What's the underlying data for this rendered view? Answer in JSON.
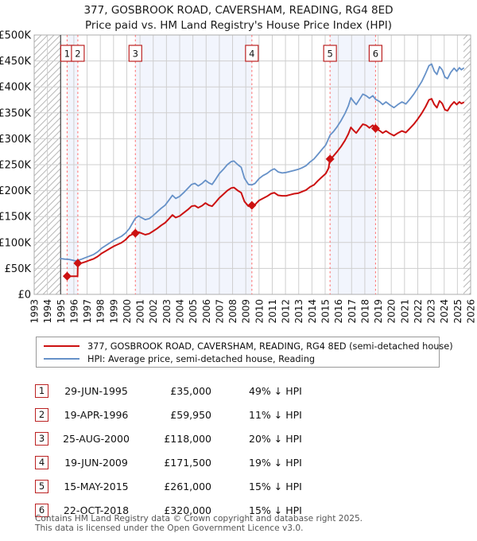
{
  "title": {
    "line1": "377, GOSBROOK ROAD, CAVERSHAM, READING, RG4 8ED",
    "line2": "Price paid vs. HM Land Registry's House Price Index (HPI)"
  },
  "legend": {
    "items": [
      {
        "label": "377, GOSBROOK ROAD, CAVERSHAM, READING, RG4 8ED (semi-detached house)",
        "color": "#cc1111"
      },
      {
        "label": "HPI: Average price, semi-detached house, Reading",
        "color": "#6691c8"
      }
    ]
  },
  "chart_data": {
    "type": "line",
    "title": "377, GOSBROOK ROAD, CAVERSHAM, READING, RG4 8ED — Price paid vs. HM Land Registry's House Price Index (HPI)",
    "x_range": [
      1993,
      2026
    ],
    "y_range": [
      0,
      500000
    ],
    "x_ticks": [
      1993,
      1994,
      1995,
      1996,
      1997,
      1998,
      1999,
      2000,
      2001,
      2002,
      2003,
      2004,
      2005,
      2006,
      2007,
      2008,
      2009,
      2010,
      2011,
      2012,
      2013,
      2014,
      2015,
      2016,
      2017,
      2018,
      2019,
      2020,
      2021,
      2022,
      2023,
      2024,
      2025,
      2026
    ],
    "y_tick_values": [
      0,
      50000,
      100000,
      150000,
      200000,
      250000,
      300000,
      350000,
      400000,
      450000,
      500000
    ],
    "y_tick_labels": [
      "£0",
      "£50K",
      "£100K",
      "£150K",
      "£200K",
      "£250K",
      "£300K",
      "£350K",
      "£400K",
      "£450K",
      "£500K"
    ],
    "grid": true,
    "colors": {
      "price": "#cc1111",
      "hpi": "#6691c8",
      "band": "#f2f5fd",
      "grid": "#cfcfcf",
      "border": "#adadad",
      "sale_line": "#ff6a6a",
      "hatch": "#b8b8b8",
      "data_start_line": "#444444",
      "marker_box_border": "#bb2222"
    },
    "hatched_periods": [
      [
        1993,
        1995.0
      ],
      [
        2025.46,
        2026
      ]
    ],
    "shaded_periods": [
      [
        1995.49,
        1996.3
      ],
      [
        2000.65,
        2009.46
      ],
      [
        2015.37,
        2018.81
      ]
    ],
    "sales": [
      {
        "n": 1,
        "date": "29-JUN-1995",
        "date_decimal": 1995.49,
        "price": 35000,
        "price_label": "£35,000",
        "pct_label": "49% ↓ HPI"
      },
      {
        "n": 2,
        "date": "19-APR-1996",
        "date_decimal": 1996.3,
        "price": 59950,
        "price_label": "£59,950",
        "pct_label": "11% ↓ HPI"
      },
      {
        "n": 3,
        "date": "25-AUG-2000",
        "date_decimal": 2000.65,
        "price": 118000,
        "price_label": "£118,000",
        "pct_label": "20% ↓ HPI"
      },
      {
        "n": 4,
        "date": "19-JUN-2009",
        "date_decimal": 2009.46,
        "price": 171500,
        "price_label": "£171,500",
        "pct_label": "19% ↓ HPI"
      },
      {
        "n": 5,
        "date": "15-MAY-2015",
        "date_decimal": 2015.37,
        "price": 261000,
        "price_label": "£261,000",
        "pct_label": "15% ↓ HPI"
      },
      {
        "n": 6,
        "date": "22-OCT-2018",
        "date_decimal": 2018.81,
        "price": 320000,
        "price_label": "£320,000",
        "pct_label": "15% ↓ HPI"
      }
    ],
    "series": [
      {
        "name": "377, GOSBROOK ROAD, CAVERSHAM, READING, RG4 8ED (semi-detached house)",
        "color": "#cc1111",
        "width": 2,
        "points": [
          [
            1995.49,
            35000
          ],
          [
            1996.28,
            35000
          ],
          [
            1996.3,
            59950
          ],
          [
            1996.6,
            60500
          ],
          [
            1996.9,
            63000
          ],
          [
            1997.2,
            66000
          ],
          [
            1997.5,
            68500
          ],
          [
            1997.8,
            73000
          ],
          [
            1998.1,
            79000
          ],
          [
            1998.4,
            83500
          ],
          [
            1998.7,
            88000
          ],
          [
            1999.0,
            92500
          ],
          [
            1999.3,
            96000
          ],
          [
            1999.6,
            99500
          ],
          [
            1999.9,
            105000
          ],
          [
            2000.2,
            113000
          ],
          [
            2000.45,
            116000
          ],
          [
            2000.65,
            118000
          ],
          [
            2000.9,
            120000
          ],
          [
            2001.1,
            118000
          ],
          [
            2001.4,
            115000
          ],
          [
            2001.7,
            117000
          ],
          [
            2002.0,
            122000
          ],
          [
            2002.3,
            127000
          ],
          [
            2002.6,
            133000
          ],
          [
            2002.9,
            138000
          ],
          [
            2003.2,
            146000
          ],
          [
            2003.45,
            153000
          ],
          [
            2003.7,
            148000
          ],
          [
            2004.0,
            151000
          ],
          [
            2004.3,
            157000
          ],
          [
            2004.6,
            163000
          ],
          [
            2004.9,
            170000
          ],
          [
            2005.15,
            171000
          ],
          [
            2005.4,
            167000
          ],
          [
            2005.7,
            171000
          ],
          [
            2005.95,
            176000
          ],
          [
            2006.2,
            172000
          ],
          [
            2006.45,
            170000
          ],
          [
            2006.7,
            177000
          ],
          [
            2007.0,
            186000
          ],
          [
            2007.3,
            193000
          ],
          [
            2007.6,
            200000
          ],
          [
            2007.9,
            205000
          ],
          [
            2008.1,
            206000
          ],
          [
            2008.4,
            200000
          ],
          [
            2008.65,
            196000
          ],
          [
            2008.9,
            179000
          ],
          [
            2009.2,
            170000
          ],
          [
            2009.46,
            171500
          ],
          [
            2009.7,
            173000
          ],
          [
            2010.0,
            181000
          ],
          [
            2010.3,
            185000
          ],
          [
            2010.6,
            189000
          ],
          [
            2010.9,
            194000
          ],
          [
            2011.15,
            196000
          ],
          [
            2011.45,
            191000
          ],
          [
            2011.75,
            190000
          ],
          [
            2012.05,
            190000
          ],
          [
            2012.35,
            192000
          ],
          [
            2012.65,
            194000
          ],
          [
            2012.95,
            195000
          ],
          [
            2013.25,
            198000
          ],
          [
            2013.55,
            201000
          ],
          [
            2013.85,
            207000
          ],
          [
            2014.15,
            211000
          ],
          [
            2014.45,
            219000
          ],
          [
            2014.75,
            226000
          ],
          [
            2015.05,
            233000
          ],
          [
            2015.25,
            243000
          ],
          [
            2015.37,
            261000
          ],
          [
            2015.6,
            266000
          ],
          [
            2015.9,
            275000
          ],
          [
            2016.2,
            285000
          ],
          [
            2016.5,
            297000
          ],
          [
            2016.75,
            309000
          ],
          [
            2016.95,
            322000
          ],
          [
            2017.15,
            316000
          ],
          [
            2017.35,
            311000
          ],
          [
            2017.6,
            320000
          ],
          [
            2017.85,
            328000
          ],
          [
            2018.1,
            326000
          ],
          [
            2018.35,
            321000
          ],
          [
            2018.6,
            326000
          ],
          [
            2018.81,
            320000
          ],
          [
            2019.1,
            316000
          ],
          [
            2019.35,
            311000
          ],
          [
            2019.6,
            315000
          ],
          [
            2019.9,
            310000
          ],
          [
            2020.2,
            306000
          ],
          [
            2020.5,
            311000
          ],
          [
            2020.8,
            315000
          ],
          [
            2021.1,
            312000
          ],
          [
            2021.4,
            320000
          ],
          [
            2021.7,
            328000
          ],
          [
            2022.0,
            338000
          ],
          [
            2022.3,
            349000
          ],
          [
            2022.6,
            362000
          ],
          [
            2022.85,
            375000
          ],
          [
            2023.05,
            377000
          ],
          [
            2023.25,
            366000
          ],
          [
            2023.45,
            360000
          ],
          [
            2023.65,
            373000
          ],
          [
            2023.85,
            368000
          ],
          [
            2024.05,
            356000
          ],
          [
            2024.25,
            354000
          ],
          [
            2024.5,
            364000
          ],
          [
            2024.75,
            371000
          ],
          [
            2024.95,
            366000
          ],
          [
            2025.15,
            371000
          ],
          [
            2025.3,
            368000
          ],
          [
            2025.46,
            370000
          ]
        ]
      },
      {
        "name": "HPI: Average price, semi-detached house, Reading",
        "color": "#6691c8",
        "width": 1.8,
        "points": [
          [
            1995.0,
            69000
          ],
          [
            1995.3,
            68000
          ],
          [
            1995.6,
            67500
          ],
          [
            1995.9,
            66000
          ],
          [
            1996.1,
            64500
          ],
          [
            1996.35,
            66000
          ],
          [
            1996.6,
            68000
          ],
          [
            1996.9,
            71000
          ],
          [
            1997.2,
            74000
          ],
          [
            1997.5,
            77000
          ],
          [
            1997.8,
            82000
          ],
          [
            1998.1,
            89000
          ],
          [
            1998.4,
            94000
          ],
          [
            1998.7,
            99000
          ],
          [
            1999.0,
            104000
          ],
          [
            1999.3,
            108000
          ],
          [
            1999.6,
            112000
          ],
          [
            1999.9,
            118000
          ],
          [
            2000.2,
            127000
          ],
          [
            2000.45,
            138000
          ],
          [
            2000.65,
            147000
          ],
          [
            2000.9,
            151000
          ],
          [
            2001.1,
            148000
          ],
          [
            2001.4,
            144000
          ],
          [
            2001.7,
            146000
          ],
          [
            2002.0,
            152000
          ],
          [
            2002.3,
            159000
          ],
          [
            2002.6,
            166000
          ],
          [
            2002.9,
            172000
          ],
          [
            2003.2,
            182000
          ],
          [
            2003.45,
            191000
          ],
          [
            2003.7,
            185000
          ],
          [
            2004.0,
            189000
          ],
          [
            2004.3,
            196000
          ],
          [
            2004.6,
            204000
          ],
          [
            2004.9,
            212000
          ],
          [
            2005.15,
            214000
          ],
          [
            2005.4,
            209000
          ],
          [
            2005.7,
            214000
          ],
          [
            2005.95,
            220000
          ],
          [
            2006.2,
            215000
          ],
          [
            2006.45,
            212000
          ],
          [
            2006.7,
            221000
          ],
          [
            2007.0,
            233000
          ],
          [
            2007.3,
            241000
          ],
          [
            2007.6,
            250000
          ],
          [
            2007.9,
            256000
          ],
          [
            2008.1,
            257000
          ],
          [
            2008.4,
            250000
          ],
          [
            2008.65,
            245000
          ],
          [
            2008.9,
            224000
          ],
          [
            2009.2,
            212000
          ],
          [
            2009.46,
            211000
          ],
          [
            2009.7,
            214000
          ],
          [
            2010.0,
            223000
          ],
          [
            2010.3,
            229000
          ],
          [
            2010.6,
            233000
          ],
          [
            2010.9,
            239000
          ],
          [
            2011.15,
            242000
          ],
          [
            2011.45,
            236000
          ],
          [
            2011.75,
            234000
          ],
          [
            2012.05,
            235000
          ],
          [
            2012.35,
            237000
          ],
          [
            2012.65,
            239000
          ],
          [
            2012.95,
            241000
          ],
          [
            2013.25,
            244000
          ],
          [
            2013.55,
            248000
          ],
          [
            2013.85,
            255000
          ],
          [
            2014.15,
            261000
          ],
          [
            2014.45,
            270000
          ],
          [
            2014.75,
            279000
          ],
          [
            2015.05,
            288000
          ],
          [
            2015.37,
            307000
          ],
          [
            2015.6,
            313000
          ],
          [
            2015.9,
            323000
          ],
          [
            2016.2,
            335000
          ],
          [
            2016.5,
            349000
          ],
          [
            2016.75,
            363000
          ],
          [
            2016.95,
            379000
          ],
          [
            2017.15,
            372000
          ],
          [
            2017.35,
            366000
          ],
          [
            2017.6,
            376000
          ],
          [
            2017.85,
            386000
          ],
          [
            2018.1,
            383000
          ],
          [
            2018.35,
            378000
          ],
          [
            2018.6,
            383000
          ],
          [
            2018.81,
            376000
          ],
          [
            2019.1,
            372000
          ],
          [
            2019.35,
            366000
          ],
          [
            2019.6,
            371000
          ],
          [
            2019.9,
            365000
          ],
          [
            2020.2,
            360000
          ],
          [
            2020.5,
            366000
          ],
          [
            2020.8,
            371000
          ],
          [
            2021.1,
            367000
          ],
          [
            2021.4,
            376000
          ],
          [
            2021.7,
            386000
          ],
          [
            2022.0,
            398000
          ],
          [
            2022.3,
            410000
          ],
          [
            2022.6,
            426000
          ],
          [
            2022.85,
            441000
          ],
          [
            2023.05,
            444000
          ],
          [
            2023.25,
            430000
          ],
          [
            2023.45,
            424000
          ],
          [
            2023.65,
            439000
          ],
          [
            2023.85,
            433000
          ],
          [
            2024.05,
            419000
          ],
          [
            2024.25,
            416000
          ],
          [
            2024.5,
            428000
          ],
          [
            2024.75,
            436000
          ],
          [
            2024.95,
            430000
          ],
          [
            2025.15,
            437000
          ],
          [
            2025.3,
            433000
          ],
          [
            2025.46,
            436000
          ]
        ]
      }
    ]
  },
  "table": {
    "rows": [
      {
        "num": "1",
        "date": "29-JUN-1995",
        "price": "£35,000",
        "pct": "49% ↓ HPI"
      },
      {
        "num": "2",
        "date": "19-APR-1996",
        "price": "£59,950",
        "pct": "11% ↓ HPI"
      },
      {
        "num": "3",
        "date": "25-AUG-2000",
        "price": "£118,000",
        "pct": "20% ↓ HPI"
      },
      {
        "num": "4",
        "date": "19-JUN-2009",
        "price": "£171,500",
        "pct": "19% ↓ HPI"
      },
      {
        "num": "5",
        "date": "15-MAY-2015",
        "price": "£261,000",
        "pct": "15% ↓ HPI"
      },
      {
        "num": "6",
        "date": "22-OCT-2018",
        "price": "£320,000",
        "pct": "15% ↓ HPI"
      }
    ]
  },
  "footer": {
    "line1": "Contains HM Land Registry data © Crown copyright and database right 2025.",
    "line2": "This data is licensed under the Open Government Licence v3.0."
  }
}
